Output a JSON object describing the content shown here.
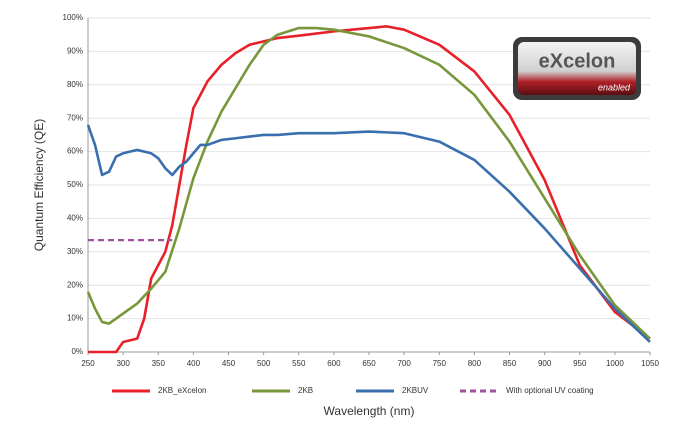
{
  "chart_data": {
    "type": "line",
    "x_label": "Wavelength (nm)",
    "y_label": "Quantum Efficiency (QE)",
    "xlim": [
      250,
      1050
    ],
    "xticks": [
      250,
      300,
      350,
      400,
      450,
      500,
      550,
      600,
      650,
      700,
      750,
      800,
      850,
      900,
      950,
      1000,
      1050
    ],
    "ylim": [
      0,
      100
    ],
    "yticks": [
      {
        "value": 0,
        "label": "0%"
      },
      {
        "value": 10,
        "label": "10%"
      },
      {
        "value": 20,
        "label": "20%"
      },
      {
        "value": 30,
        "label": "30%"
      },
      {
        "value": 40,
        "label": "40%"
      },
      {
        "value": 50,
        "label": "50%"
      },
      {
        "value": 60,
        "label": "60%"
      },
      {
        "value": 70,
        "label": "70%"
      },
      {
        "value": 80,
        "label": "80%"
      },
      {
        "value": 90,
        "label": "90%"
      },
      {
        "value": 100,
        "label": "100%"
      }
    ],
    "grid": true,
    "legend": "bottom",
    "logo_text": "eXcelon",
    "logo_subtext": "enabled",
    "series": [
      {
        "name": "2KB_eXcelon",
        "color": "#e8202a",
        "style": "solid",
        "x": [
          250,
          270,
          290,
          300,
          320,
          330,
          340,
          360,
          370,
          380,
          390,
          400,
          420,
          440,
          460,
          480,
          500,
          520,
          550,
          600,
          650,
          675,
          700,
          750,
          800,
          850,
          900,
          950,
          1000,
          1050
        ],
        "values": [
          0,
          0,
          0,
          3,
          4,
          10,
          22,
          30,
          38,
          50,
          62,
          73,
          81,
          86,
          89.5,
          92,
          93,
          94,
          94.7,
          96,
          97,
          97.5,
          96.5,
          92,
          84,
          71,
          51.5,
          26,
          12,
          4
        ]
      },
      {
        "name": "2KB",
        "color": "#77973a",
        "style": "solid",
        "x": [
          250,
          260,
          270,
          280,
          290,
          300,
          320,
          340,
          360,
          380,
          400,
          420,
          440,
          460,
          480,
          500,
          520,
          550,
          575,
          600,
          650,
          700,
          750,
          800,
          850,
          900,
          950,
          1000,
          1050
        ],
        "values": [
          18,
          13,
          9,
          8.5,
          10,
          11.5,
          14.5,
          19,
          24,
          37,
          52,
          63,
          72,
          79,
          86,
          92,
          95,
          97,
          97,
          96.5,
          94.5,
          91,
          86,
          77,
          63,
          46,
          29,
          14,
          4
        ]
      },
      {
        "name": "2KBUV",
        "color": "#3a6faf",
        "style": "solid",
        "x": [
          250,
          260,
          270,
          280,
          290,
          300,
          320,
          340,
          350,
          360,
          370,
          380,
          390,
          400,
          410,
          420,
          440,
          460,
          480,
          500,
          520,
          550,
          600,
          650,
          700,
          750,
          800,
          850,
          900,
          950,
          1000,
          1050
        ],
        "values": [
          68,
          62,
          53,
          54,
          58.5,
          59.5,
          60.5,
          59.5,
          58,
          55,
          53,
          55.5,
          57,
          59.5,
          62,
          62,
          63.5,
          64,
          64.5,
          65,
          65,
          65.5,
          65.5,
          66,
          65.5,
          63,
          57.5,
          48,
          37,
          25,
          13,
          3
        ]
      },
      {
        "name": "With optional UV coating",
        "color": "#a0529f",
        "style": "dashed",
        "x": [
          250,
          370
        ],
        "values": [
          33.5,
          33.5
        ]
      }
    ]
  }
}
